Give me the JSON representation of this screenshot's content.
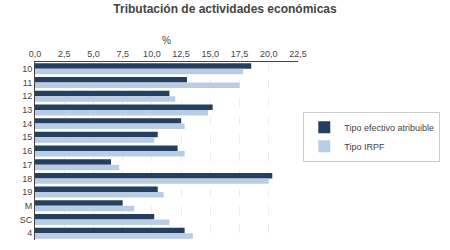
{
  "chart_data": {
    "type": "bar",
    "orientation": "horizontal",
    "title": "Tributación de actividades económicas",
    "xlabel": "%",
    "categories": [
      "10",
      "11",
      "12",
      "13",
      "14",
      "15",
      "16",
      "17",
      "18",
      "19",
      "M",
      "SC",
      "4"
    ],
    "series": [
      {
        "name": "Tipo efectivo atribuible",
        "color": "#243F60",
        "values": [
          18.5,
          13.0,
          11.5,
          15.2,
          12.5,
          10.5,
          12.2,
          6.5,
          20.3,
          10.5,
          7.5,
          10.2,
          12.8
        ]
      },
      {
        "name": "Tipo IRPF",
        "color": "#B8CCE4",
        "values": [
          17.8,
          17.5,
          12.0,
          14.8,
          12.8,
          10.2,
          12.8,
          7.2,
          20.0,
          11.0,
          8.5,
          11.5,
          13.5
        ]
      }
    ],
    "xlim": [
      0,
      22.5
    ],
    "xticks": [
      {
        "value": 0.0,
        "label": "0,0"
      },
      {
        "value": 2.5,
        "label": "2,5"
      },
      {
        "value": 5.0,
        "label": "5,0"
      },
      {
        "value": 7.5,
        "label": "7,5"
      },
      {
        "value": 10.0,
        "label": "10,0"
      },
      {
        "value": 12.5,
        "label": "12,5"
      },
      {
        "value": 15.0,
        "label": "15,0"
      },
      {
        "value": 17.5,
        "label": "17,5"
      },
      {
        "value": 20.0,
        "label": "20,0"
      },
      {
        "value": 22.5,
        "label": "22,5"
      }
    ],
    "grid": true,
    "legend": "right"
  }
}
